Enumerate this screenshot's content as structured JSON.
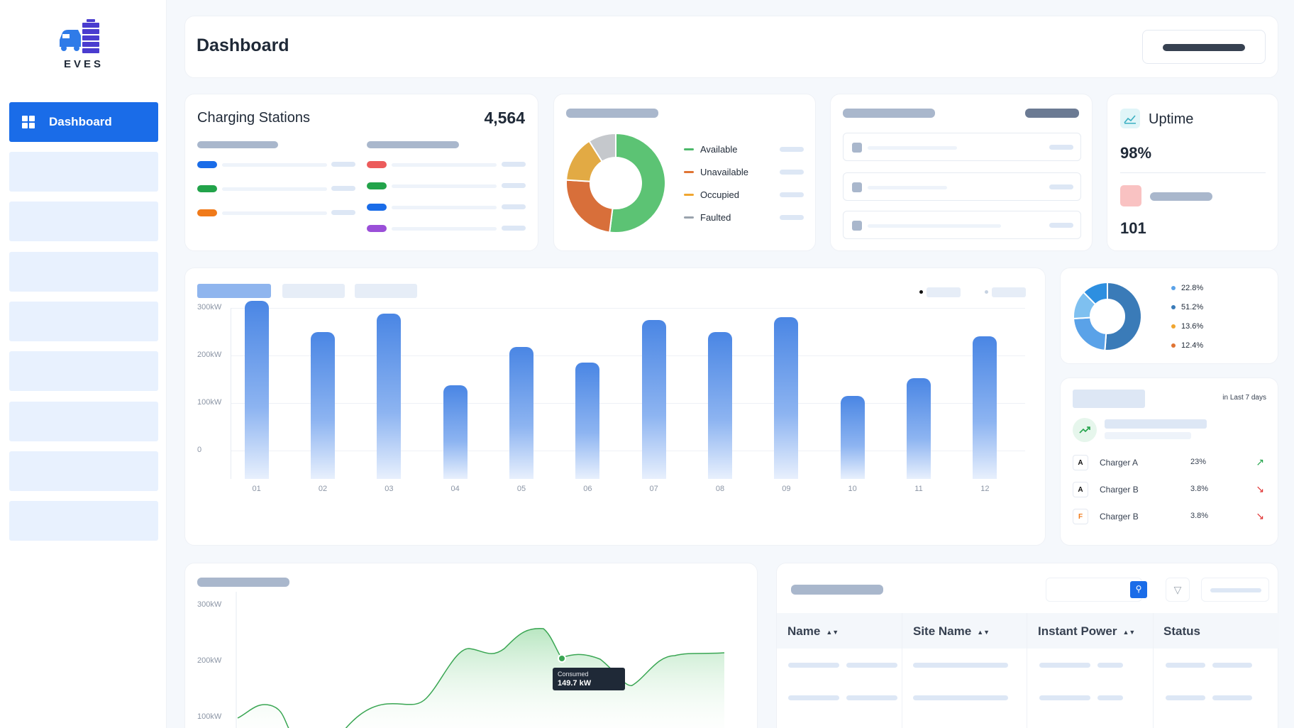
{
  "brand": {
    "name": "EVES",
    "icon": "ev-charger-logo-icon"
  },
  "sidebar": {
    "active_label": "Dashboard",
    "items": 9
  },
  "header": {
    "title": "Dashboard"
  },
  "charging_stations": {
    "title": "Charging Stations",
    "count": "4,564"
  },
  "status_card": {
    "legend": [
      {
        "label": "Available",
        "color": "#4cb86a"
      },
      {
        "label": "Unavailable",
        "color": "#e07433"
      },
      {
        "label": "Occupied",
        "color": "#f0a630"
      },
      {
        "label": "Faulted",
        "color": "#9aa3ad"
      }
    ],
    "donut": [
      {
        "value": 52,
        "color": "#5cc374"
      },
      {
        "value": 24,
        "color": "#d86f3a"
      },
      {
        "value": 15,
        "color": "#e2aa44"
      },
      {
        "value": 9,
        "color": "#c5c8cc"
      }
    ]
  },
  "uptime": {
    "title": "Uptime",
    "percent": "98%",
    "count": "101",
    "icon": "uptime-chart-icon"
  },
  "bar_chart": {
    "chart_data": {
      "type": "bar",
      "categories": [
        "01",
        "02",
        "03",
        "04",
        "05",
        "06",
        "07",
        "08",
        "09",
        "10",
        "11",
        "12"
      ],
      "values": [
        315,
        250,
        288,
        138,
        218,
        185,
        274,
        249,
        281,
        115,
        152,
        240
      ],
      "ylabel": "",
      "ylim": [
        -50,
        300
      ],
      "ticks": [
        "300kW",
        "200kW",
        "100kW",
        "0"
      ]
    }
  },
  "share_card": {
    "items": [
      {
        "label": "22.8%",
        "color": "#5aa2e8"
      },
      {
        "label": "51.2%",
        "color": "#3a7bb8"
      },
      {
        "label": "13.6%",
        "color": "#f0a630"
      },
      {
        "label": "12.4%",
        "color": "#e07433"
      }
    ]
  },
  "trend_card": {
    "period": "in Last 7 days",
    "rows": [
      {
        "badge": "A",
        "name": "Charger A",
        "pct": "23%",
        "trend": "up"
      },
      {
        "badge": "A",
        "name": "Charger B",
        "pct": "3.8%",
        "trend": "down"
      },
      {
        "badge": "F",
        "name": "Charger B",
        "pct": "3.8%",
        "trend": "down"
      }
    ]
  },
  "line_chart": {
    "ticks": [
      "300kW",
      "200kW",
      "100kW"
    ],
    "tooltip": {
      "label": "Consumed",
      "value": "149.7 kW"
    }
  },
  "table": {
    "columns": [
      "Name",
      "Site Name",
      "Instant Power",
      "Status"
    ]
  }
}
